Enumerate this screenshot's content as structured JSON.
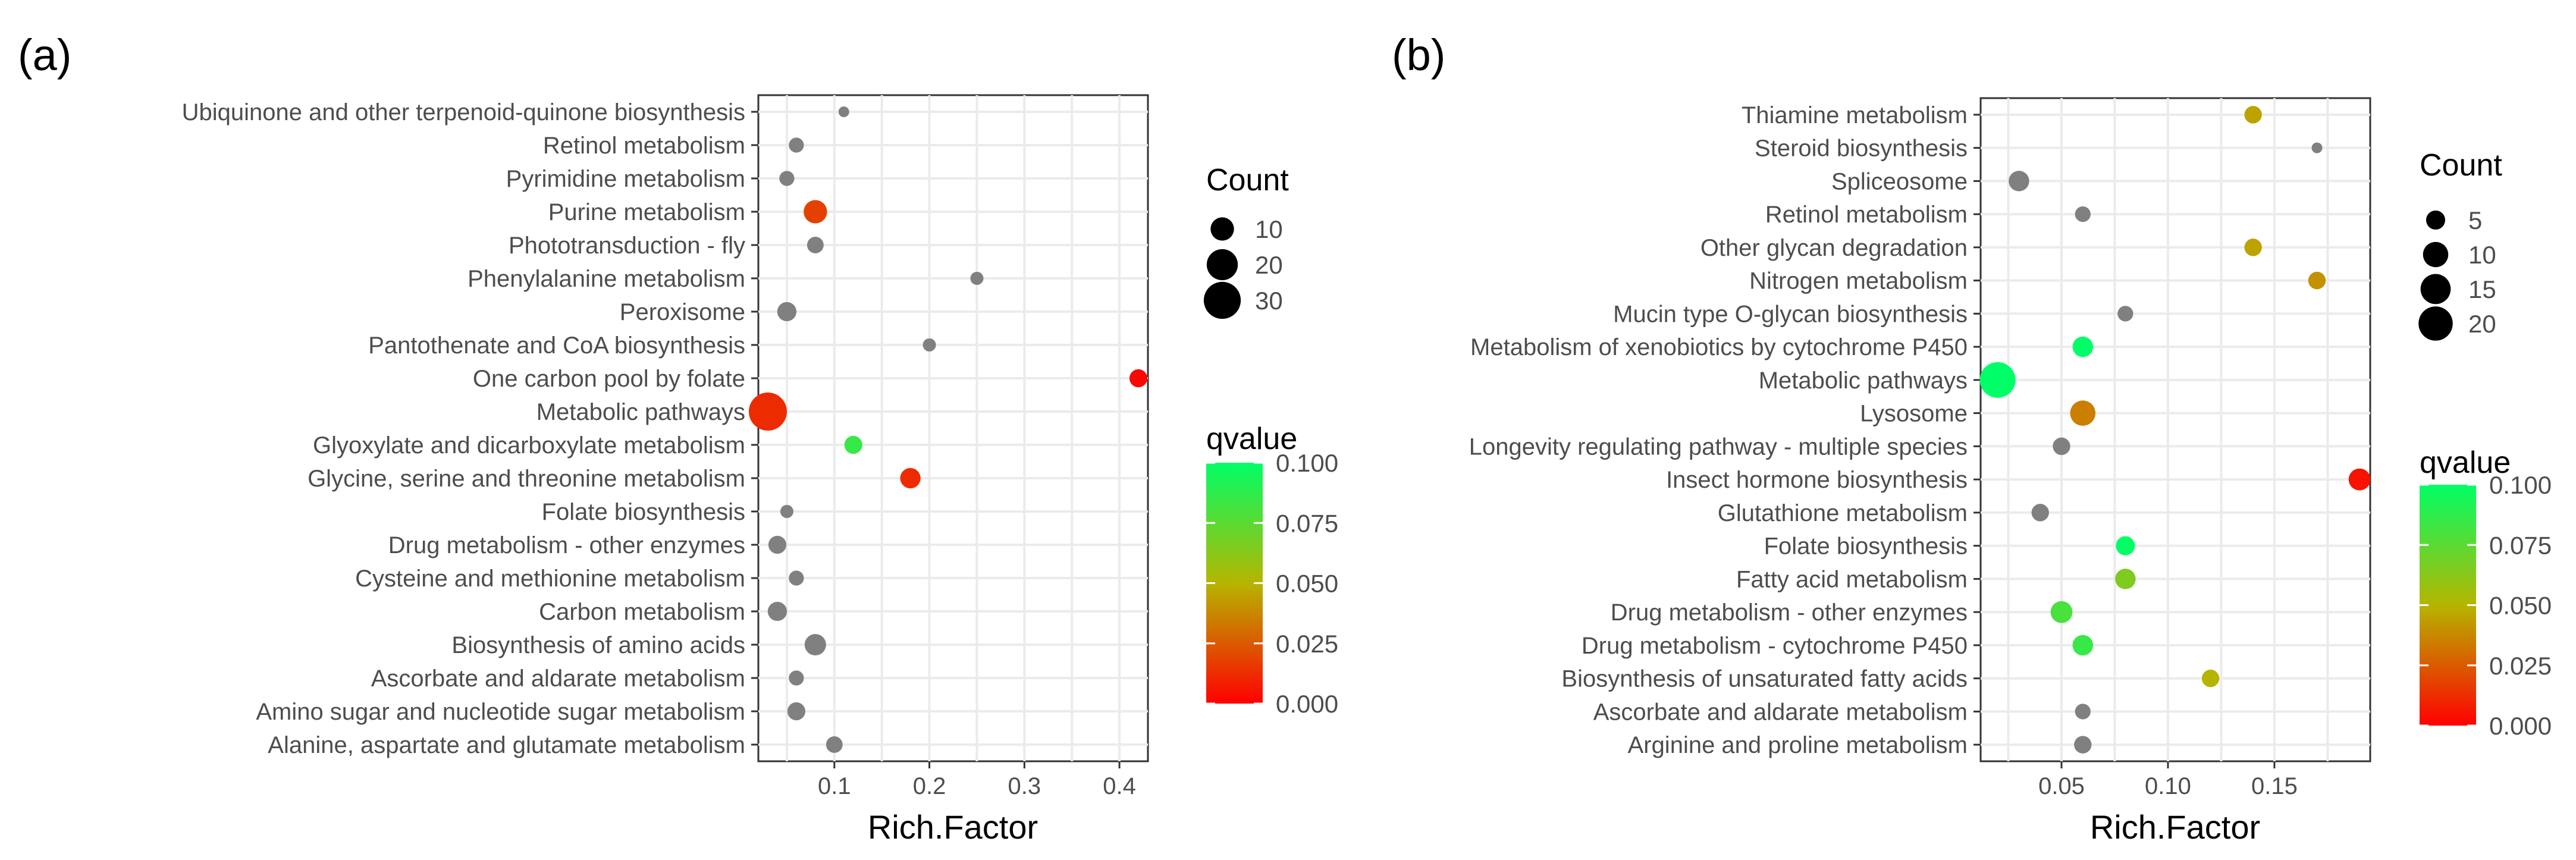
{
  "chart_data": [
    {
      "panel_label": "(a)",
      "type": "scatter",
      "xlabel": "Rich.Factor",
      "xlim": [
        0.02,
        0.43
      ],
      "xticks": [
        0.1,
        0.2,
        0.3,
        0.4
      ],
      "xtick_labels": [
        "0.1",
        "0.2",
        "0.3",
        "0.4"
      ],
      "grid": true,
      "categories": [
        "Ubiquinone and other terpenoid-quinone biosynthesis",
        "Retinol metabolism",
        "Pyrimidine metabolism",
        "Purine metabolism",
        "Phototransduction - fly",
        "Phenylalanine metabolism",
        "Peroxisome",
        "Pantothenate and CoA biosynthesis",
        "One carbon pool by folate",
        "Metabolic pathways",
        "Glyoxylate and dicarboxylate metabolism",
        "Glycine, serine and threonine metabolism",
        "Folate biosynthesis",
        "Drug metabolism - other enzymes",
        "Cysteine and methionine metabolism",
        "Carbon metabolism",
        "Biosynthesis of amino acids",
        "Ascorbate and aldarate metabolism",
        "Amino sugar and nucleotide sugar metabolism",
        "Alanine, aspartate and glutamate metabolism"
      ],
      "points": [
        {
          "rich_factor": 0.11,
          "count": 1,
          "qvalue": null
        },
        {
          "rich_factor": 0.06,
          "count": 3,
          "qvalue": null
        },
        {
          "rich_factor": 0.05,
          "count": 3,
          "qvalue": null
        },
        {
          "rich_factor": 0.08,
          "count": 10,
          "qvalue": 0.018
        },
        {
          "rich_factor": 0.08,
          "count": 4,
          "qvalue": null
        },
        {
          "rich_factor": 0.25,
          "count": 2,
          "qvalue": null
        },
        {
          "rich_factor": 0.05,
          "count": 6,
          "qvalue": null
        },
        {
          "rich_factor": 0.2,
          "count": 2,
          "qvalue": null
        },
        {
          "rich_factor": 0.42,
          "count": 5,
          "qvalue": 0.002
        },
        {
          "rich_factor": 0.03,
          "count": 32,
          "qvalue": 0.012
        },
        {
          "rich_factor": 0.12,
          "count": 5,
          "qvalue": 0.085
        },
        {
          "rich_factor": 0.18,
          "count": 7,
          "qvalue": 0.012
        },
        {
          "rich_factor": 0.05,
          "count": 2,
          "qvalue": null
        },
        {
          "rich_factor": 0.04,
          "count": 5,
          "qvalue": null
        },
        {
          "rich_factor": 0.06,
          "count": 3,
          "qvalue": null
        },
        {
          "rich_factor": 0.04,
          "count": 6,
          "qvalue": null
        },
        {
          "rich_factor": 0.08,
          "count": 8,
          "qvalue": null
        },
        {
          "rich_factor": 0.06,
          "count": 3,
          "qvalue": null
        },
        {
          "rich_factor": 0.06,
          "count": 5,
          "qvalue": null
        },
        {
          "rich_factor": 0.1,
          "count": 4,
          "qvalue": null
        }
      ],
      "count_legend": {
        "title": "Count",
        "values": [
          10,
          20,
          30
        ],
        "labels": [
          "10",
          "20",
          "30"
        ]
      },
      "color_legend": {
        "title": "qvalue",
        "range": [
          0.0,
          0.1
        ],
        "ticks": [
          0.1,
          0.075,
          0.05,
          0.025,
          0.0
        ],
        "labels": [
          "0.100",
          "0.075",
          "0.050",
          "0.025",
          "0.000"
        ]
      },
      "legend_position": "right"
    },
    {
      "panel_label": "(b)",
      "type": "scatter",
      "xlabel": "Rich.Factor",
      "xlim": [
        0.012,
        0.195
      ],
      "xticks": [
        0.05,
        0.1,
        0.15
      ],
      "xtick_labels": [
        "0.05",
        "0.10",
        "0.15"
      ],
      "grid": true,
      "categories": [
        "Thiamine metabolism",
        "Steroid biosynthesis",
        "Spliceosome",
        "Retinol metabolism",
        "Other glycan degradation",
        "Nitrogen metabolism",
        "Mucin type O-glycan biosynthesis",
        "Metabolism of xenobiotics by cytochrome P450",
        "Metabolic pathways",
        "Lysosome",
        "Longevity regulating pathway - multiple species",
        "Insect hormone biosynthesis",
        "Glutathione metabolism",
        "Folate biosynthesis",
        "Fatty acid metabolism",
        "Drug metabolism - other enzymes",
        "Drug metabolism - cytochrome P450",
        "Biosynthesis of unsaturated fatty acids",
        "Ascorbate and aldarate metabolism",
        "Arginine and proline metabolism"
      ],
      "points": [
        {
          "rich_factor": 0.14,
          "count": 4,
          "qvalue": 0.045
        },
        {
          "rich_factor": 0.17,
          "count": 1,
          "qvalue": null
        },
        {
          "rich_factor": 0.03,
          "count": 6,
          "qvalue": null
        },
        {
          "rich_factor": 0.06,
          "count": 3,
          "qvalue": null
        },
        {
          "rich_factor": 0.14,
          "count": 4,
          "qvalue": 0.045
        },
        {
          "rich_factor": 0.17,
          "count": 4,
          "qvalue": 0.04
        },
        {
          "rich_factor": 0.08,
          "count": 3,
          "qvalue": null
        },
        {
          "rich_factor": 0.06,
          "count": 6,
          "qvalue": 0.1
        },
        {
          "rich_factor": 0.02,
          "count": 22,
          "qvalue": 0.1
        },
        {
          "rich_factor": 0.06,
          "count": 10,
          "qvalue": 0.035
        },
        {
          "rich_factor": 0.05,
          "count": 4,
          "qvalue": null
        },
        {
          "rich_factor": 0.19,
          "count": 7,
          "qvalue": 0.005
        },
        {
          "rich_factor": 0.04,
          "count": 4,
          "qvalue": null
        },
        {
          "rich_factor": 0.08,
          "count": 5,
          "qvalue": 0.1
        },
        {
          "rich_factor": 0.08,
          "count": 6,
          "qvalue": 0.065
        },
        {
          "rich_factor": 0.05,
          "count": 7,
          "qvalue": 0.08
        },
        {
          "rich_factor": 0.06,
          "count": 6,
          "qvalue": 0.085
        },
        {
          "rich_factor": 0.12,
          "count": 4,
          "qvalue": 0.05
        },
        {
          "rich_factor": 0.06,
          "count": 3,
          "qvalue": null
        },
        {
          "rich_factor": 0.06,
          "count": 4,
          "qvalue": null
        }
      ],
      "count_legend": {
        "title": "Count",
        "values": [
          5,
          10,
          15,
          20
        ],
        "labels": [
          "5",
          "10",
          "15",
          "20"
        ]
      },
      "color_legend": {
        "title": "qvalue",
        "range": [
          0.0,
          0.1
        ],
        "ticks": [
          0.1,
          0.075,
          0.05,
          0.025,
          0.0
        ],
        "labels": [
          "0.100",
          "0.075",
          "0.050",
          "0.025",
          "0.000"
        ]
      },
      "legend_position": "right"
    }
  ],
  "colors": {
    "na_point": "#808080",
    "gradient_low": "#ff0000",
    "gradient_mid": "#b5b500",
    "gradient_high": "#00ff66",
    "grid": "#ebebeb",
    "axis_text": "#4d4d4d"
  }
}
